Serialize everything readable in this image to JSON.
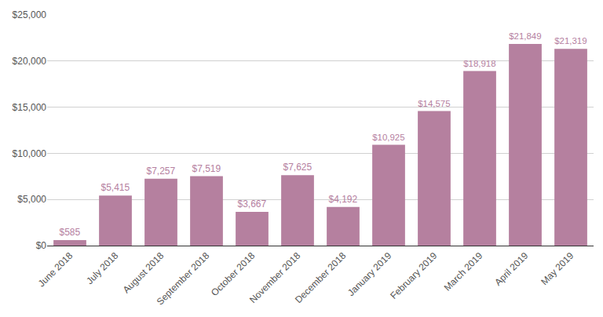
{
  "chart_data": {
    "type": "bar",
    "categories": [
      "June 2018",
      "July 2018",
      "August 2018",
      "September 2018",
      "October 2018",
      "November 2018",
      "December 2018",
      "January 2019",
      "February 2019",
      "March 2019",
      "April 2019",
      "May 2019"
    ],
    "values": [
      585,
      5415,
      7257,
      7519,
      3667,
      7625,
      4192,
      10925,
      14575,
      18918,
      21849,
      21319
    ],
    "value_labels": [
      "$585",
      "$5,415",
      "$7,257",
      "$7,519",
      "$3,667",
      "$7,625",
      "$4,192",
      "$10,925",
      "$14,575",
      "$18,918",
      "$21,849",
      "$21,319"
    ],
    "data_labels": true,
    "color": "#b5809f",
    "ylim": [
      0,
      25000
    ],
    "yticks": [
      {
        "value": 0,
        "label": "$0"
      },
      {
        "value": 5000,
        "label": "$5,000"
      },
      {
        "value": 10000,
        "label": "$10,000"
      },
      {
        "value": 15000,
        "label": "$15,000"
      },
      {
        "value": 20000,
        "label": "$20,000"
      },
      {
        "value": 25000,
        "label": "$25,000"
      }
    ],
    "grid": true
  }
}
